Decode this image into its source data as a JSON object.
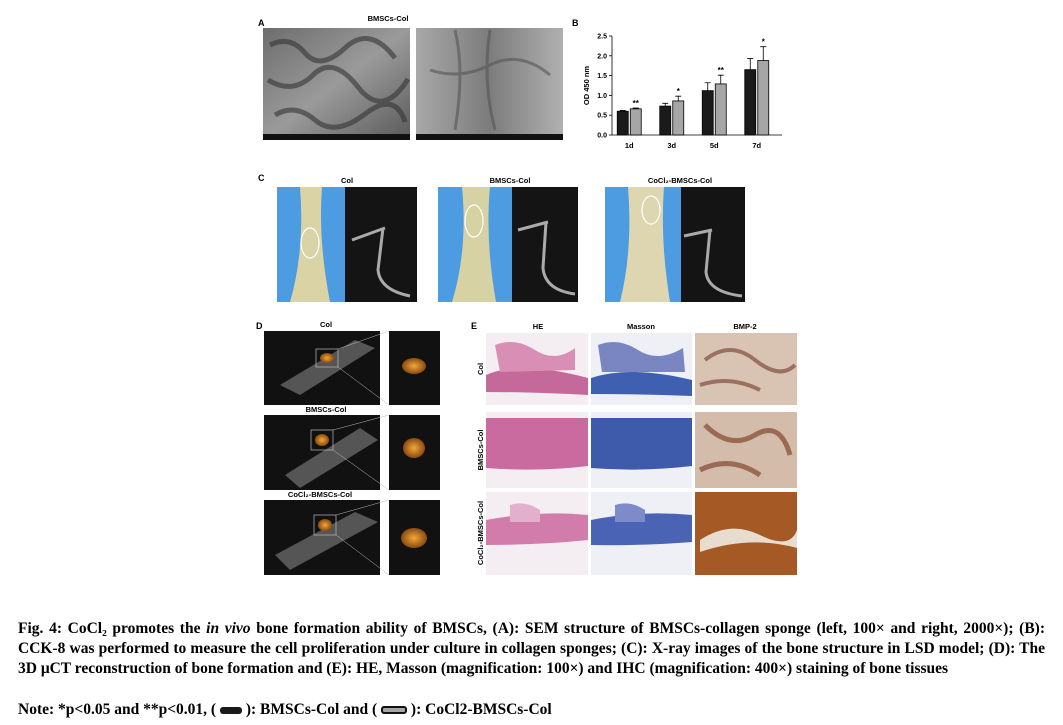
{
  "panels": {
    "A": {
      "label": "A",
      "title": "BMSCs-Col"
    },
    "C": {
      "label": "C",
      "titles": [
        "Col",
        "BMSCs-Col",
        "CoCl₂-BMSCs-Col"
      ]
    },
    "D": {
      "label": "D",
      "titles": [
        "Col",
        "BMSCs-Col",
        "CoCl₂-BMSCs-Col"
      ]
    },
    "E": {
      "label": "E",
      "columns": [
        "HE",
        "Masson",
        "BMP-2"
      ],
      "rows": [
        "Col",
        "BMSCs-Col",
        "CoCl₂-BMSCs-Col"
      ]
    }
  },
  "chart_data": {
    "type": "bar",
    "panel_label": "B",
    "y_label": "OD 450 nm",
    "categories": [
      "1d",
      "3d",
      "5d",
      "7d"
    ],
    "series": [
      {
        "color": "#1a1a1a",
        "values": [
          0.6,
          0.73,
          1.12,
          1.65
        ],
        "errors": [
          0.02,
          0.07,
          0.2,
          0.28
        ]
      },
      {
        "color": "#a6a6a6",
        "values": [
          0.66,
          0.86,
          1.29,
          1.88
        ],
        "errors": [
          0.02,
          0.12,
          0.22,
          0.35
        ],
        "annotations": [
          "**",
          "*",
          "**",
          "*"
        ]
      }
    ],
    "ylim": [
      0,
      2.5
    ],
    "yticks": [
      {
        "value": 0,
        "label": "0.0"
      },
      {
        "value": 0.5,
        "label": "0.5"
      },
      {
        "value": 1,
        "label": "1.0"
      },
      {
        "value": 1.5,
        "label": "1.5"
      },
      {
        "value": 2,
        "label": "2.0"
      },
      {
        "value": 2.5,
        "label": "2.5"
      }
    ]
  },
  "caption": {
    "label": "Fig. 4:",
    "text_before": "CoCl₂ promotes the",
    "emphasis": "in vivo",
    "text_after": "bone formation ability of BMSCs, (A): SEM structure of BMSCs-collagen sponge (left, 100× and right, 2000×); (B): CCK-8 was performed to measure the cell proliferation under culture in collagen sponges; (C): X-ray images of the bone structure in LSD model; (D): The 3D μCT reconstruction of bone formation and (E): HE, Masson (magnification: 100×) and IHC (magnification: 400×) staining of bone tissues"
  },
  "note": {
    "before": "Note: *p<0.05 and **p<0.01, (",
    "middle": "): BMSCs-Col and (",
    "after": "): CoCl2-BMSCs-Col"
  }
}
